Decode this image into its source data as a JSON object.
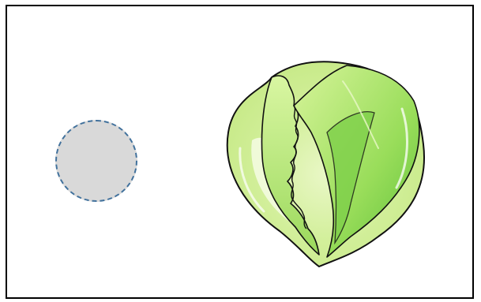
{
  "scene": {
    "frame_border_color": "#000000",
    "background_color": "#ffffff"
  },
  "drop_target": {
    "fill_color": "#d9d9d9",
    "dash_color": "#41719c"
  },
  "illustration": {
    "icon": "lettuce-icon",
    "outline_color": "#111111",
    "leaf_light": "#e9f7c6",
    "leaf_mid": "#b9e472",
    "leaf_dark": "#5fc13a"
  }
}
